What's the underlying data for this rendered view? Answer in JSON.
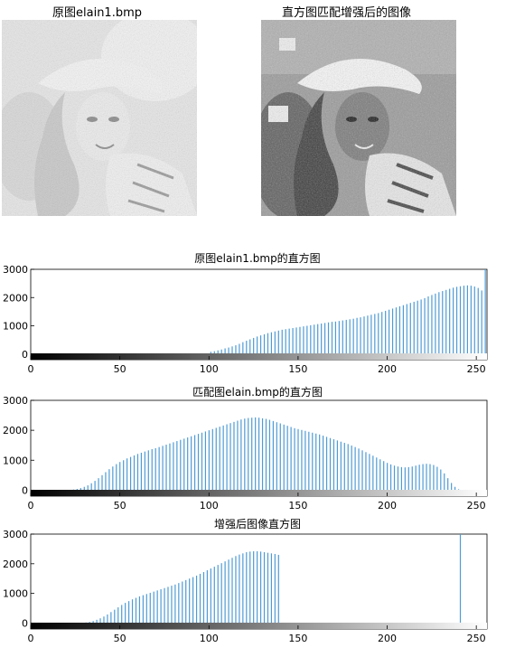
{
  "images": [
    {
      "title": "原图elain1.bmp"
    },
    {
      "title": "直方图匹配增强后的图像"
    }
  ],
  "chart_data": [
    {
      "type": "bar",
      "title": "原图elain1.bmp的直方图",
      "xlim": [
        0,
        256
      ],
      "ylim": [
        -200,
        3000
      ],
      "xticks": [
        0,
        50,
        100,
        150,
        200,
        250
      ],
      "yticks": [
        0,
        1000,
        2000,
        3000
      ],
      "bar_color": "#4f9bd4",
      "x": [
        101,
        103,
        105,
        107,
        109,
        111,
        113,
        115,
        117,
        119,
        121,
        123,
        125,
        127,
        129,
        131,
        133,
        135,
        137,
        139,
        141,
        143,
        145,
        147,
        149,
        151,
        153,
        155,
        157,
        159,
        161,
        163,
        165,
        167,
        169,
        171,
        173,
        175,
        177,
        179,
        181,
        183,
        185,
        187,
        189,
        191,
        193,
        195,
        197,
        199,
        201,
        203,
        205,
        207,
        209,
        211,
        213,
        215,
        217,
        219,
        221,
        223,
        225,
        227,
        229,
        231,
        233,
        235,
        237,
        239,
        241,
        243,
        245,
        247,
        249,
        251,
        253,
        255
      ],
      "values": [
        80,
        100,
        130,
        160,
        200,
        230,
        270,
        310,
        360,
        420,
        470,
        520,
        570,
        620,
        660,
        700,
        740,
        770,
        800,
        830,
        860,
        880,
        900,
        920,
        940,
        960,
        980,
        1000,
        1020,
        1040,
        1060,
        1080,
        1100,
        1120,
        1140,
        1150,
        1170,
        1190,
        1210,
        1230,
        1250,
        1280,
        1300,
        1330,
        1360,
        1390,
        1420,
        1450,
        1490,
        1530,
        1570,
        1610,
        1650,
        1690,
        1730,
        1770,
        1810,
        1850,
        1890,
        1930,
        1980,
        2040,
        2090,
        2140,
        2190,
        2230,
        2270,
        2310,
        2350,
        2380,
        2400,
        2420,
        2430,
        2420,
        2390,
        2340,
        2250,
        3000
      ]
    },
    {
      "type": "bar",
      "title": "匹配图elain.bmp的直方图",
      "xlim": [
        0,
        256
      ],
      "ylim": [
        -200,
        3000
      ],
      "xticks": [
        0,
        50,
        100,
        150,
        200,
        250
      ],
      "yticks": [
        0,
        1000,
        2000,
        3000
      ],
      "bar_color": "#4f9bd4",
      "x": [
        24,
        26,
        28,
        30,
        32,
        34,
        36,
        38,
        40,
        42,
        44,
        46,
        48,
        50,
        52,
        54,
        56,
        58,
        60,
        62,
        64,
        66,
        68,
        70,
        72,
        74,
        76,
        78,
        80,
        82,
        84,
        86,
        88,
        90,
        92,
        94,
        96,
        98,
        100,
        102,
        104,
        106,
        108,
        110,
        112,
        114,
        116,
        118,
        120,
        122,
        124,
        126,
        128,
        130,
        132,
        134,
        136,
        138,
        140,
        142,
        144,
        146,
        148,
        150,
        152,
        154,
        156,
        158,
        160,
        162,
        164,
        166,
        168,
        170,
        172,
        174,
        176,
        178,
        180,
        182,
        184,
        186,
        188,
        190,
        192,
        194,
        196,
        198,
        200,
        202,
        204,
        206,
        208,
        210,
        212,
        214,
        216,
        218,
        220,
        222,
        224,
        226,
        228,
        230,
        232,
        234,
        236,
        238,
        240
      ],
      "values": [
        20,
        40,
        70,
        110,
        160,
        230,
        310,
        400,
        500,
        600,
        700,
        790,
        870,
        940,
        1000,
        1060,
        1110,
        1160,
        1210,
        1250,
        1290,
        1330,
        1370,
        1400,
        1440,
        1480,
        1520,
        1560,
        1600,
        1640,
        1680,
        1720,
        1760,
        1800,
        1840,
        1880,
        1920,
        1960,
        2000,
        2040,
        2080,
        2120,
        2160,
        2200,
        2240,
        2280,
        2320,
        2360,
        2390,
        2410,
        2420,
        2430,
        2420,
        2400,
        2380,
        2350,
        2310,
        2270,
        2230,
        2190,
        2150,
        2110,
        2070,
        2040,
        2010,
        1980,
        1950,
        1920,
        1890,
        1860,
        1820,
        1780,
        1740,
        1700,
        1660,
        1620,
        1580,
        1540,
        1490,
        1440,
        1390,
        1330,
        1270,
        1210,
        1150,
        1090,
        1030,
        970,
        910,
        860,
        820,
        790,
        770,
        760,
        770,
        790,
        820,
        850,
        870,
        880,
        870,
        840,
        780,
        690,
        560,
        400,
        240,
        110,
        30
      ]
    },
    {
      "type": "bar",
      "title": "增强后图像直方图",
      "xlim": [
        0,
        256
      ],
      "ylim": [
        -200,
        3000
      ],
      "xticks": [
        0,
        50,
        100,
        150,
        200,
        250
      ],
      "yticks": [
        0,
        1000,
        2000,
        3000
      ],
      "bar_color": "#4f9bd4",
      "x": [
        31,
        33,
        35,
        37,
        39,
        41,
        43,
        45,
        47,
        49,
        51,
        53,
        55,
        57,
        59,
        61,
        63,
        65,
        67,
        69,
        71,
        73,
        75,
        77,
        79,
        81,
        83,
        85,
        87,
        89,
        91,
        93,
        95,
        97,
        99,
        101,
        103,
        105,
        107,
        109,
        111,
        113,
        115,
        117,
        119,
        121,
        123,
        125,
        127,
        129,
        131,
        133,
        135,
        137,
        139,
        241
      ],
      "values": [
        20,
        40,
        70,
        110,
        160,
        220,
        290,
        370,
        450,
        530,
        610,
        680,
        740,
        800,
        850,
        900,
        940,
        980,
        1020,
        1060,
        1100,
        1140,
        1180,
        1220,
        1260,
        1300,
        1350,
        1400,
        1450,
        1500,
        1550,
        1600,
        1660,
        1720,
        1780,
        1840,
        1900,
        1960,
        2020,
        2080,
        2140,
        2200,
        2260,
        2310,
        2350,
        2390,
        2410,
        2420,
        2420,
        2410,
        2390,
        2370,
        2350,
        2330,
        2300,
        3000
      ]
    }
  ]
}
